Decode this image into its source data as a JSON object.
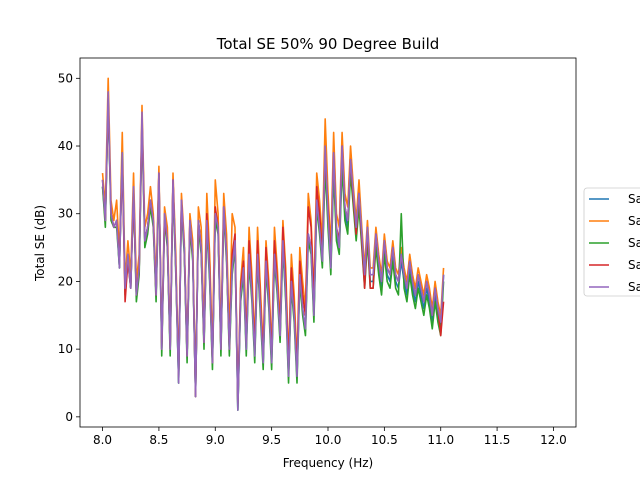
{
  "chart_data": {
    "type": "line",
    "title": "Total SE 50% 90 Degree Build",
    "xlabel": "Frequency (Hz)",
    "ylabel": "Total SE (dB)",
    "xlim": [
      7.8,
      12.2
    ],
    "ylim": [
      -1.5,
      53
    ],
    "xticks": [
      "8.0",
      "8.5",
      "9.0",
      "9.5",
      "10.0",
      "10.5",
      "11.0",
      "11.5",
      "12.0"
    ],
    "yticks": [
      "0",
      "10",
      "20",
      "30",
      "40",
      "50"
    ],
    "grid": false,
    "legend_position": "center-right (partially cut off)",
    "legend_entries": [
      "Sa",
      "Sa",
      "Sa",
      "Sa",
      "Sa"
    ],
    "x_start": 8.0,
    "x_step": 0.025,
    "series": [
      {
        "color": "#1f77b4",
        "values": [
          34,
          29,
          46,
          30,
          28,
          29,
          22,
          38,
          19,
          24,
          19,
          34,
          18,
          22,
          44,
          26,
          28,
          32,
          29,
          18,
          36,
          10,
          30,
          26,
          10,
          35,
          22,
          5,
          32,
          25,
          9,
          29,
          24,
          3,
          29,
          25,
          11,
          29,
          21,
          8,
          30,
          28,
          10,
          31,
          24,
          10,
          22,
          26,
          1,
          18,
          22,
          10,
          24,
          18,
          9,
          24,
          16,
          8,
          23,
          17,
          8,
          24,
          19,
          12,
          26,
          18,
          6,
          20,
          15,
          6,
          21,
          16,
          13,
          27,
          25,
          15,
          32,
          28,
          23,
          38,
          29,
          22,
          37,
          27,
          25,
          38,
          30,
          28,
          37,
          32,
          27,
          32,
          26,
          20,
          27,
          20,
          20,
          26,
          22,
          19,
          25,
          21,
          20,
          24,
          20,
          19,
          23,
          20,
          18,
          22,
          19,
          17,
          20,
          18,
          16,
          19,
          17,
          14,
          18,
          15,
          13,
          21
        ]
      },
      {
        "color": "#ff7f0e",
        "values": [
          36,
          31,
          50,
          32,
          29,
          32,
          24,
          42,
          20,
          26,
          21,
          36,
          20,
          24,
          46,
          28,
          30,
          34,
          30,
          20,
          37,
          11,
          31,
          28,
          11,
          36,
          24,
          6,
          33,
          26,
          10,
          30,
          26,
          4,
          31,
          28,
          13,
          33,
          24,
          10,
          35,
          30,
          12,
          33,
          27,
          12,
          30,
          28,
          2,
          20,
          25,
          12,
          28,
          21,
          11,
          28,
          19,
          10,
          26,
          20,
          10,
          28,
          22,
          14,
          29,
          22,
          8,
          24,
          18,
          8,
          25,
          20,
          16,
          33,
          29,
          18,
          36,
          32,
          26,
          44,
          33,
          25,
          42,
          30,
          28,
          42,
          33,
          31,
          40,
          34,
          29,
          35,
          28,
          22,
          29,
          22,
          22,
          28,
          24,
          21,
          27,
          23,
          22,
          26,
          22,
          21,
          25,
          22,
          20,
          24,
          21,
          19,
          22,
          20,
          18,
          21,
          19,
          16,
          20,
          17,
          15,
          22
        ]
      },
      {
        "color": "#2ca02c",
        "values": [
          34,
          28,
          47,
          29,
          28,
          28,
          22,
          39,
          18,
          23,
          19,
          33,
          17,
          21,
          43,
          25,
          27,
          31,
          28,
          17,
          35,
          9,
          29,
          25,
          9,
          34,
          21,
          5,
          31,
          24,
          8,
          28,
          23,
          3,
          28,
          24,
          10,
          28,
          20,
          7,
          29,
          27,
          9,
          30,
          23,
          9,
          21,
          25,
          1,
          17,
          21,
          9,
          23,
          17,
          8,
          23,
          15,
          7,
          22,
          16,
          7,
          23,
          18,
          11,
          25,
          17,
          5,
          19,
          14,
          5,
          20,
          15,
          12,
          26,
          24,
          14,
          31,
          27,
          22,
          37,
          28,
          21,
          36,
          26,
          24,
          37,
          29,
          27,
          36,
          31,
          26,
          31,
          25,
          19,
          26,
          19,
          19,
          25,
          21,
          18,
          24,
          20,
          19,
          23,
          19,
          18,
          30,
          19,
          17,
          21,
          18,
          16,
          19,
          17,
          15,
          18,
          16,
          13,
          17,
          14,
          12,
          20
        ]
      },
      {
        "color": "#d62728",
        "values": [
          35,
          29,
          47,
          30,
          28,
          29,
          23,
          38,
          17,
          23,
          19,
          33,
          18,
          22,
          44,
          26,
          28,
          32,
          29,
          18,
          36,
          10,
          29,
          26,
          10,
          35,
          22,
          6,
          32,
          25,
          9,
          29,
          24,
          3,
          29,
          25,
          11,
          30,
          22,
          8,
          31,
          28,
          10,
          31,
          24,
          10,
          24,
          27,
          2,
          19,
          23,
          11,
          26,
          19,
          10,
          26,
          17,
          9,
          25,
          18,
          9,
          26,
          20,
          13,
          28,
          20,
          7,
          22,
          16,
          7,
          23,
          18,
          15,
          31,
          28,
          17,
          34,
          30,
          24,
          39,
          31,
          23,
          39,
          28,
          26,
          40,
          31,
          29,
          38,
          32,
          27,
          33,
          26,
          19,
          28,
          19,
          19,
          27,
          23,
          20,
          26,
          22,
          21,
          25,
          21,
          20,
          24,
          21,
          19,
          23,
          20,
          18,
          21,
          19,
          17,
          20,
          18,
          15,
          19,
          16,
          12,
          17
        ]
      },
      {
        "color": "#9467bd",
        "values": [
          35,
          29,
          48,
          30,
          28,
          29,
          22,
          39,
          19,
          24,
          19,
          34,
          18,
          22,
          45,
          26,
          28,
          32,
          29,
          18,
          36,
          10,
          30,
          26,
          10,
          35,
          22,
          5,
          32,
          25,
          9,
          29,
          24,
          3,
          29,
          25,
          11,
          29,
          21,
          8,
          30,
          28,
          10,
          31,
          24,
          10,
          22,
          26,
          1,
          18,
          22,
          10,
          24,
          18,
          9,
          24,
          16,
          8,
          23,
          17,
          8,
          24,
          19,
          12,
          26,
          18,
          6,
          20,
          15,
          6,
          21,
          16,
          13,
          27,
          25,
          15,
          32,
          28,
          23,
          40,
          30,
          22,
          39,
          28,
          25,
          40,
          31,
          29,
          38,
          33,
          28,
          33,
          27,
          21,
          28,
          21,
          21,
          27,
          23,
          20,
          26,
          22,
          21,
          25,
          21,
          20,
          24,
          21,
          19,
          23,
          20,
          18,
          21,
          19,
          17,
          20,
          18,
          15,
          19,
          16,
          14,
          21
        ]
      }
    ]
  }
}
